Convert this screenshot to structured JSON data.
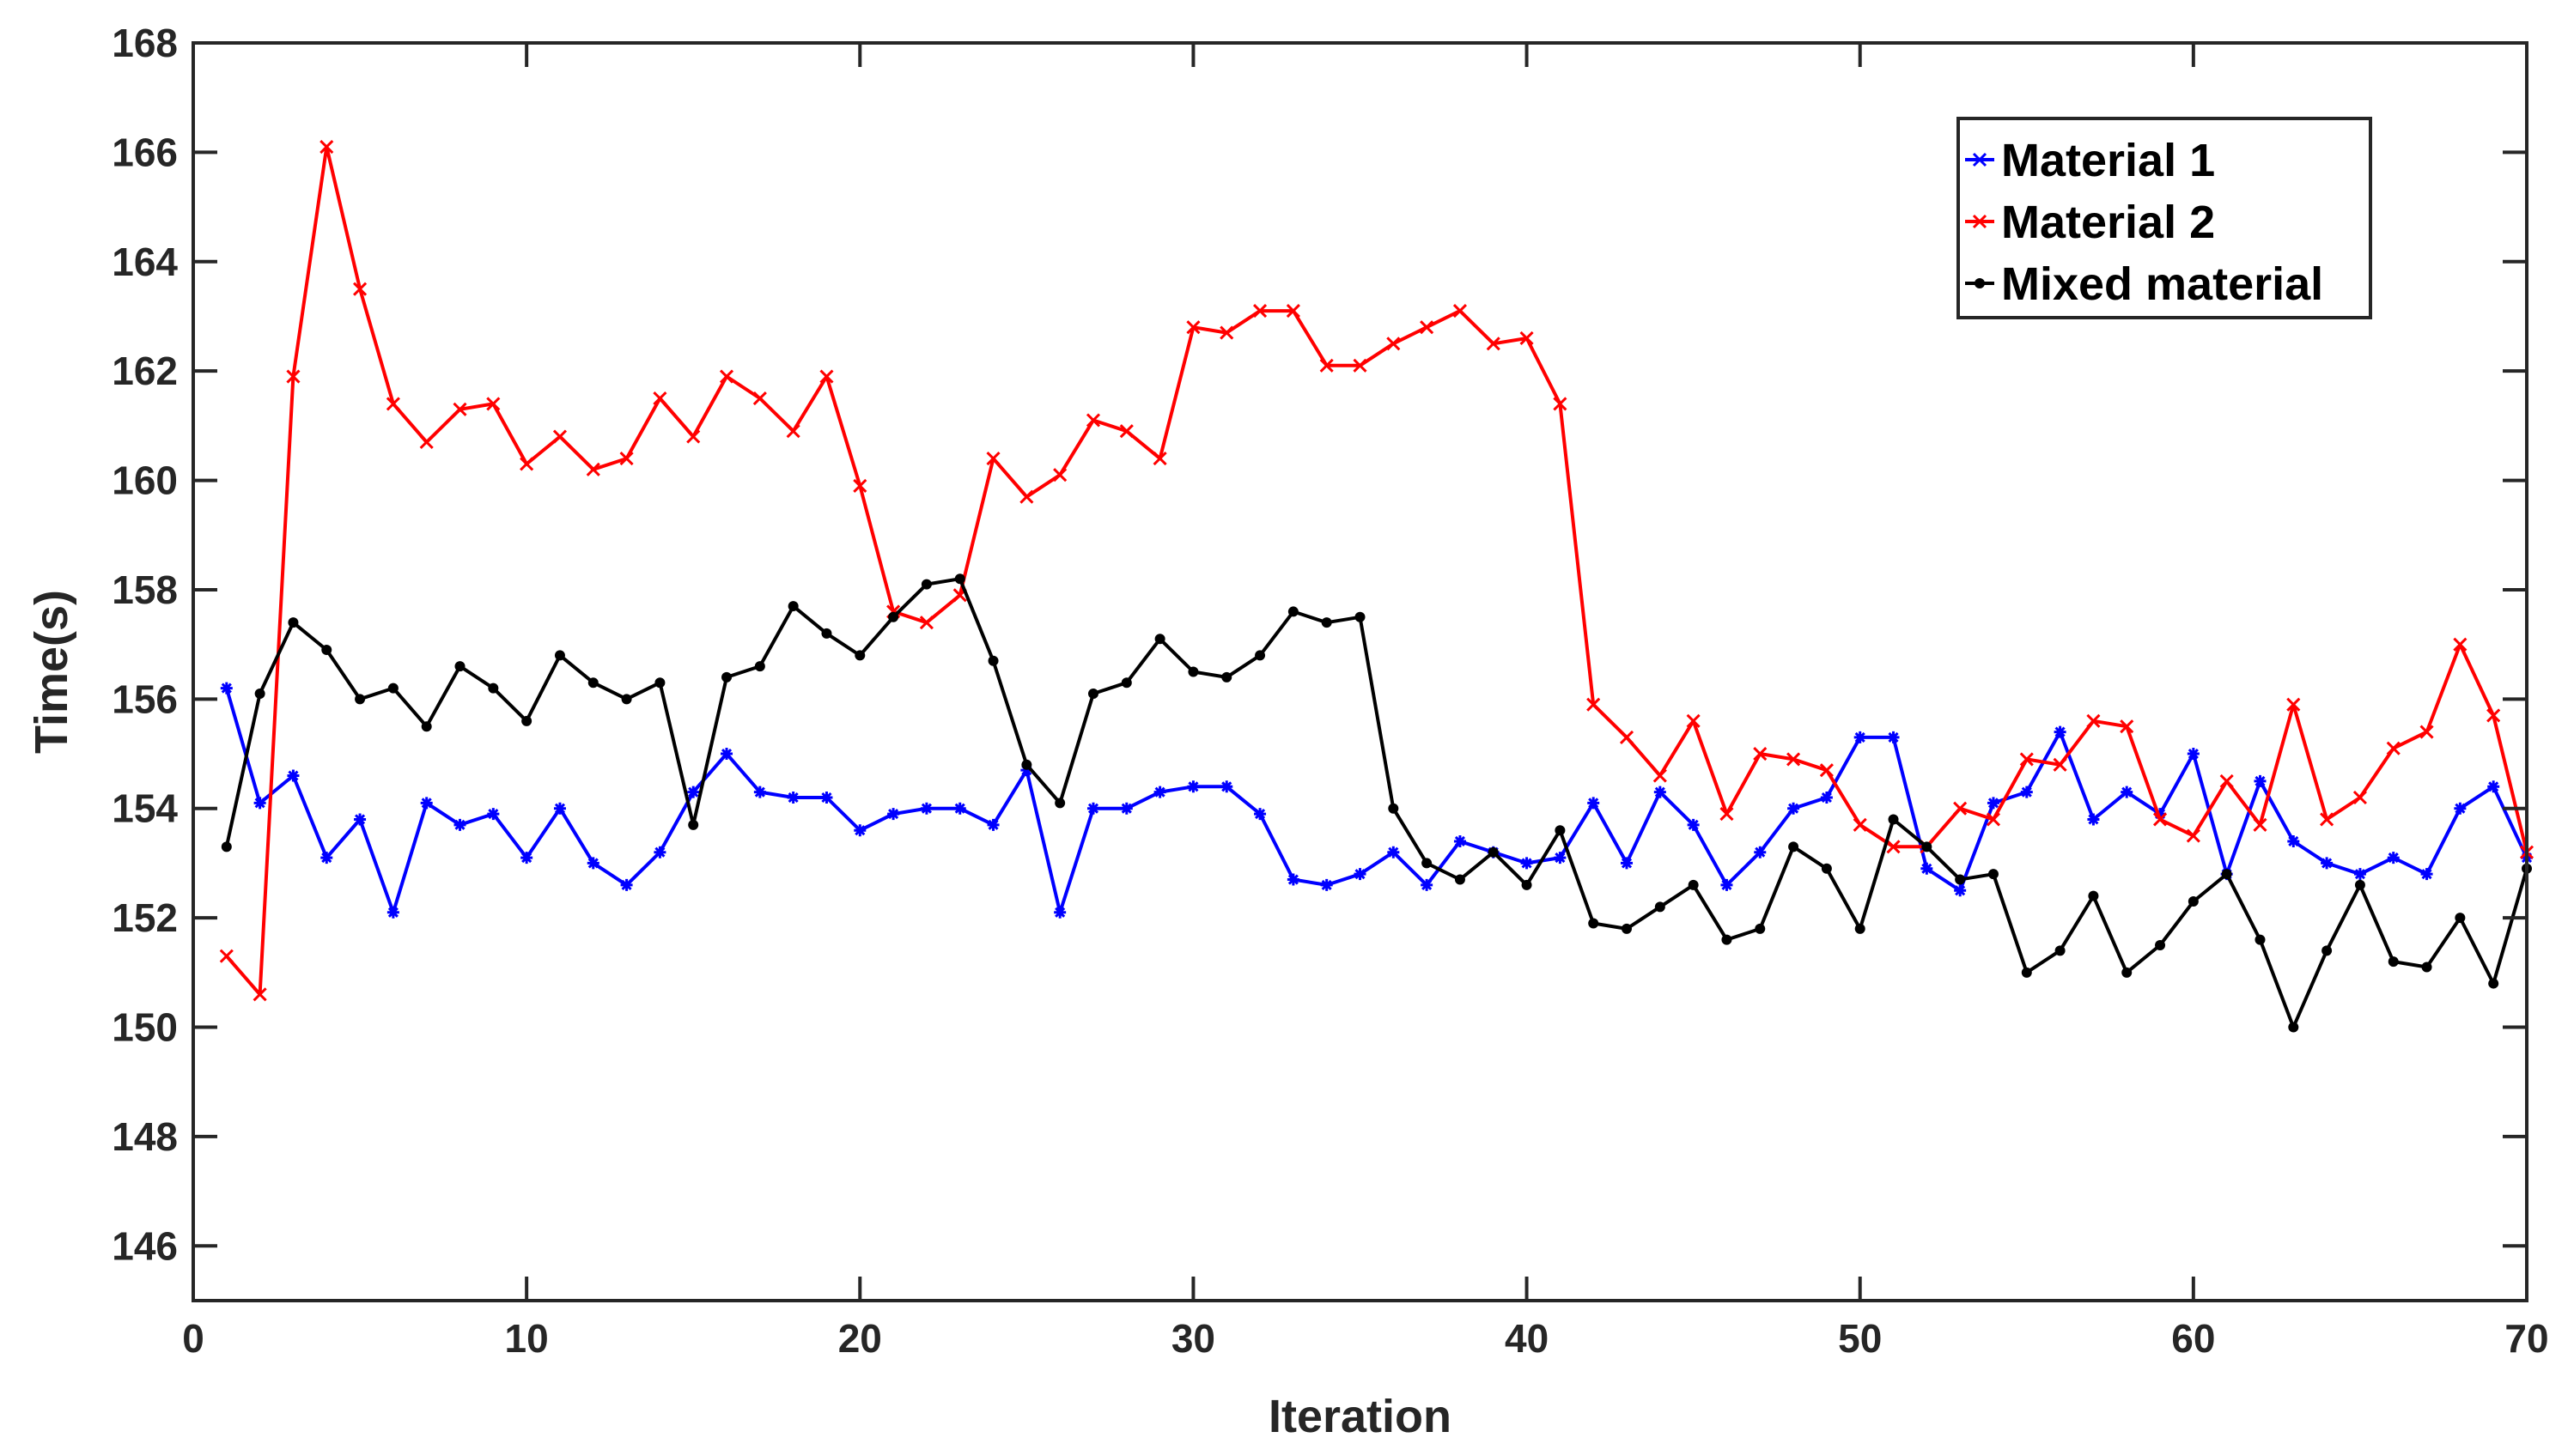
{
  "chart_data": {
    "type": "line",
    "title": "",
    "xlabel": "Iteration",
    "ylabel": "Time(s)",
    "xlim": [
      0,
      70
    ],
    "ylim": [
      145,
      168
    ],
    "xticks": [
      0,
      10,
      20,
      30,
      40,
      50,
      60,
      70
    ],
    "yticks": [
      146,
      148,
      150,
      152,
      154,
      156,
      158,
      160,
      162,
      164,
      166,
      168
    ],
    "grid": false,
    "legend_position": "top-right",
    "x": [
      1,
      2,
      3,
      4,
      5,
      6,
      7,
      8,
      9,
      10,
      11,
      12,
      13,
      14,
      15,
      16,
      17,
      18,
      19,
      20,
      21,
      22,
      23,
      24,
      25,
      26,
      27,
      28,
      29,
      30,
      31,
      32,
      33,
      34,
      35,
      36,
      37,
      38,
      39,
      40,
      41,
      42,
      43,
      44,
      45,
      46,
      47,
      48,
      49,
      50,
      51,
      52,
      53,
      54,
      55,
      56,
      57,
      58,
      59,
      60,
      61,
      62,
      63,
      64,
      65,
      66,
      67,
      68,
      69,
      70
    ],
    "series": [
      {
        "name": "Material 1",
        "color": "#0000ff",
        "marker": "asterisk",
        "values": [
          156.2,
          154.1,
          154.6,
          153.1,
          153.8,
          152.1,
          154.1,
          153.7,
          153.9,
          153.1,
          154.0,
          153.0,
          152.6,
          153.2,
          154.3,
          155.0,
          154.3,
          154.2,
          154.2,
          153.6,
          153.9,
          154.0,
          154.0,
          153.7,
          154.7,
          152.1,
          154.0,
          154.0,
          154.3,
          154.4,
          154.4,
          153.9,
          152.7,
          152.6,
          152.8,
          153.2,
          152.6,
          153.4,
          153.2,
          153.0,
          153.1,
          154.1,
          153.0,
          154.3,
          153.7,
          152.6,
          153.2,
          154.0,
          154.2,
          155.3,
          155.3,
          152.9,
          152.5,
          154.1,
          154.3,
          155.4,
          153.8,
          154.3,
          153.9,
          155.0,
          152.8,
          154.5,
          153.4,
          153.0,
          152.8,
          153.1,
          152.8,
          154.0,
          154.4,
          153.1
        ]
      },
      {
        "name": "Material 2",
        "color": "#ff0000",
        "marker": "x",
        "values": [
          151.3,
          150.6,
          161.9,
          166.1,
          163.5,
          161.4,
          160.7,
          161.3,
          161.4,
          160.3,
          160.8,
          160.2,
          160.4,
          161.5,
          160.8,
          161.9,
          161.5,
          160.9,
          161.9,
          159.9,
          157.6,
          157.4,
          157.9,
          160.4,
          159.7,
          160.1,
          161.1,
          160.9,
          160.4,
          162.8,
          162.7,
          163.1,
          163.1,
          162.1,
          162.1,
          162.5,
          162.8,
          163.1,
          162.5,
          162.6,
          161.4,
          155.9,
          155.3,
          154.6,
          155.6,
          153.9,
          155.0,
          154.9,
          154.7,
          153.7,
          153.3,
          153.3,
          154.0,
          153.8,
          154.9,
          154.8,
          155.6,
          155.5,
          153.8,
          153.5,
          154.5,
          153.7,
          155.9,
          153.8,
          154.2,
          155.1,
          155.4,
          157.0,
          155.7,
          153.2
        ]
      },
      {
        "name": "Mixed material",
        "color": "#000000",
        "marker": "dot",
        "values": [
          153.3,
          156.1,
          157.4,
          156.9,
          156.0,
          156.2,
          155.5,
          156.6,
          156.2,
          155.6,
          156.8,
          156.3,
          156.0,
          156.3,
          153.7,
          156.4,
          156.6,
          157.7,
          157.2,
          156.8,
          157.5,
          158.1,
          158.2,
          156.7,
          154.8,
          154.1,
          156.1,
          156.3,
          157.1,
          156.5,
          156.4,
          156.8,
          157.6,
          157.4,
          157.5,
          154.0,
          153.0,
          152.7,
          153.2,
          152.6,
          153.6,
          151.9,
          151.8,
          152.2,
          152.6,
          151.6,
          151.8,
          153.3,
          152.9,
          151.8,
          153.8,
          153.3,
          152.7,
          152.8,
          151.0,
          151.4,
          152.4,
          151.0,
          151.5,
          152.3,
          152.8,
          151.6,
          150.0,
          151.4,
          152.6,
          151.2,
          151.1,
          152.0,
          150.8,
          152.9
        ]
      }
    ]
  }
}
